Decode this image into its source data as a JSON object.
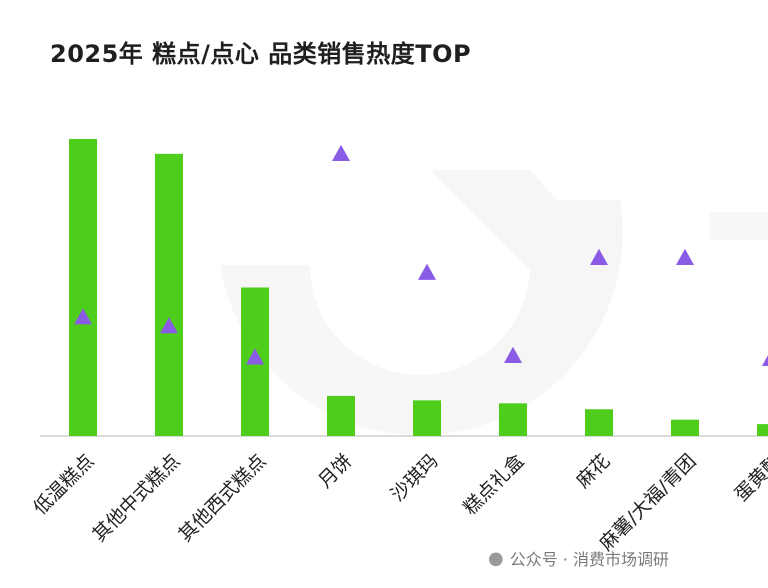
{
  "chart_data": {
    "type": "bar",
    "title": "2025年 糕点/点心 品类销售热度TOP",
    "categories": [
      "低温糕点",
      "其他中式糕点",
      "其他西式糕点",
      "月饼",
      "沙琪玛",
      "糕点礼盒",
      "麻花",
      "麻薯/大福/青团",
      "蛋黄酥"
    ],
    "series": [
      {
        "kind": "bar",
        "values": [
          100,
          95,
          50,
          13.5,
          12,
          11,
          9,
          5.5,
          4
        ]
      },
      {
        "kind": "triangle",
        "values": [
          40,
          37,
          26.5,
          95,
          55,
          27,
          60,
          60,
          26
        ]
      }
    ],
    "ylim": [
      0,
      100
    ],
    "grid": false,
    "colors": {
      "bar": "#4ece1a",
      "marker": "#8a5ce6",
      "baseline": "#cfcfcf",
      "title": "#1f1f1f"
    }
  },
  "watermark": {
    "icon": "wechat-icon",
    "text": "公众号 · 消费市场调研"
  }
}
